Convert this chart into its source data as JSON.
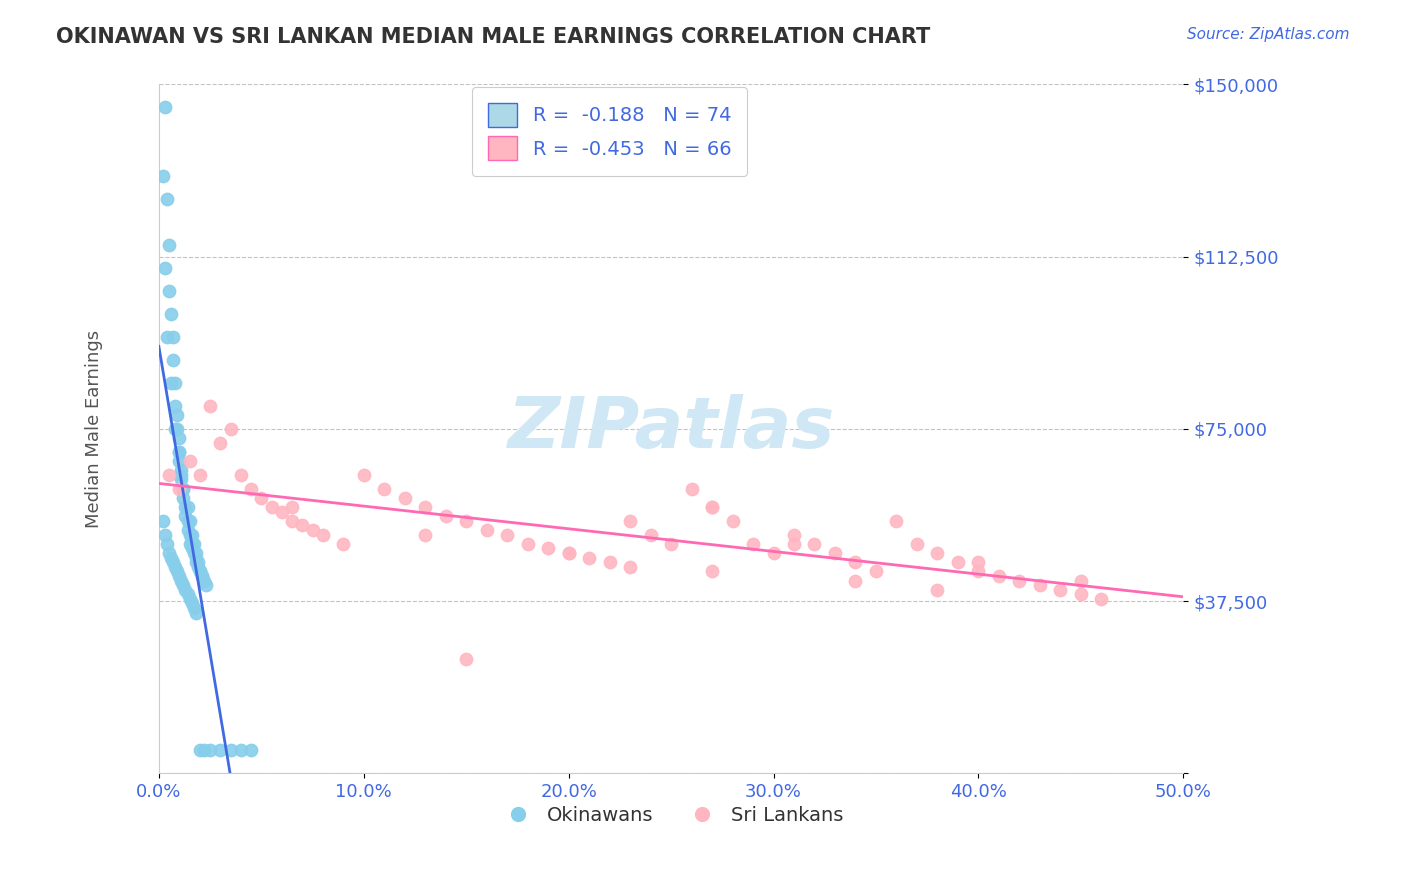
{
  "title": "OKINAWAN VS SRI LANKAN MEDIAN MALE EARNINGS CORRELATION CHART",
  "source_text": "Source: ZipAtlas.com",
  "xlabel": "",
  "ylabel": "Median Male Earnings",
  "xlim": [
    0.0,
    0.5
  ],
  "ylim": [
    0,
    150000
  ],
  "yticks": [
    0,
    37500,
    75000,
    112500,
    150000
  ],
  "ytick_labels": [
    "",
    "$37,500",
    "$75,000",
    "$112,500",
    "$150,000"
  ],
  "xticks": [
    0.0,
    0.1,
    0.2,
    0.3,
    0.4,
    0.5
  ],
  "xtick_labels": [
    "0.0%",
    "10.0%",
    "20.0%",
    "30.0%",
    "40.0%",
    "50.0%"
  ],
  "legend_r1": "R =  -0.188",
  "legend_n1": "N = 74",
  "legend_r2": "R =  -0.453",
  "legend_n2": "N = 66",
  "legend_label1": "Okinawans",
  "legend_label2": "Sri Lankans",
  "okinawan_color": "#87CEEB",
  "srilanka_color": "#FFB6C1",
  "trendline1_color": "#4169E1",
  "trendline2_color": "#FF69B4",
  "axis_label_color": "#4169E1",
  "title_color": "#333333",
  "watermark_color": "#D0E8F5",
  "background_color": "#FFFFFF",
  "grid_color": "#AAAAAA",
  "okinawan_x": [
    0.002,
    0.003,
    0.004,
    0.005,
    0.005,
    0.006,
    0.007,
    0.007,
    0.008,
    0.008,
    0.009,
    0.009,
    0.01,
    0.01,
    0.01,
    0.011,
    0.011,
    0.012,
    0.012,
    0.013,
    0.013,
    0.014,
    0.014,
    0.015,
    0.015,
    0.016,
    0.016,
    0.017,
    0.018,
    0.018,
    0.019,
    0.02,
    0.021,
    0.022,
    0.023,
    0.003,
    0.004,
    0.006,
    0.008,
    0.01,
    0.011,
    0.012,
    0.014,
    0.015,
    0.016,
    0.017,
    0.018,
    0.019,
    0.02,
    0.021,
    0.002,
    0.003,
    0.004,
    0.005,
    0.006,
    0.007,
    0.008,
    0.009,
    0.01,
    0.011,
    0.012,
    0.013,
    0.014,
    0.015,
    0.016,
    0.017,
    0.018,
    0.02,
    0.022,
    0.025,
    0.03,
    0.035,
    0.04,
    0.045
  ],
  "okinawan_y": [
    130000,
    145000,
    125000,
    115000,
    105000,
    100000,
    95000,
    90000,
    85000,
    80000,
    78000,
    75000,
    73000,
    70000,
    68000,
    66000,
    64000,
    62000,
    60000,
    58000,
    56000,
    55000,
    53000,
    52000,
    50000,
    50000,
    49000,
    48000,
    47000,
    46000,
    45000,
    44000,
    43000,
    42000,
    41000,
    110000,
    95000,
    85000,
    75000,
    70000,
    65000,
    62000,
    58000,
    55000,
    52000,
    50000,
    48000,
    46000,
    44000,
    43000,
    55000,
    52000,
    50000,
    48000,
    47000,
    46000,
    45000,
    44000,
    43000,
    42000,
    41000,
    40000,
    39000,
    38000,
    37000,
    36000,
    35000,
    5000,
    5000,
    5000,
    5000,
    5000,
    5000,
    5000
  ],
  "srilanka_x": [
    0.005,
    0.01,
    0.015,
    0.02,
    0.025,
    0.03,
    0.035,
    0.04,
    0.045,
    0.05,
    0.055,
    0.06,
    0.065,
    0.07,
    0.075,
    0.08,
    0.09,
    0.1,
    0.11,
    0.12,
    0.13,
    0.14,
    0.15,
    0.16,
    0.17,
    0.18,
    0.19,
    0.2,
    0.21,
    0.22,
    0.23,
    0.24,
    0.25,
    0.26,
    0.27,
    0.28,
    0.29,
    0.3,
    0.31,
    0.32,
    0.33,
    0.34,
    0.35,
    0.36,
    0.37,
    0.38,
    0.39,
    0.4,
    0.41,
    0.42,
    0.43,
    0.44,
    0.45,
    0.46,
    0.065,
    0.13,
    0.2,
    0.27,
    0.34,
    0.27,
    0.31,
    0.4,
    0.45,
    0.38,
    0.15,
    0.23
  ],
  "srilanka_y": [
    65000,
    62000,
    68000,
    65000,
    80000,
    72000,
    75000,
    65000,
    62000,
    60000,
    58000,
    57000,
    55000,
    54000,
    53000,
    52000,
    50000,
    65000,
    62000,
    60000,
    58000,
    56000,
    55000,
    53000,
    52000,
    50000,
    49000,
    48000,
    47000,
    46000,
    55000,
    52000,
    50000,
    62000,
    58000,
    55000,
    50000,
    48000,
    52000,
    50000,
    48000,
    46000,
    44000,
    55000,
    50000,
    48000,
    46000,
    44000,
    43000,
    42000,
    41000,
    40000,
    39000,
    38000,
    58000,
    52000,
    48000,
    44000,
    42000,
    58000,
    50000,
    46000,
    42000,
    40000,
    25000,
    45000
  ]
}
